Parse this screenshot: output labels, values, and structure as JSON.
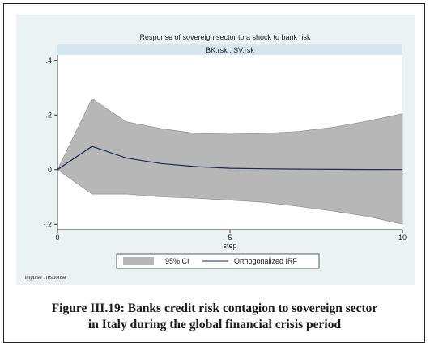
{
  "figure": {
    "caption_line1": "Figure III.19: Banks credit risk contagion to sovereign sector",
    "caption_line2": "in Italy during the global financial crisis period"
  },
  "chart_data": {
    "type": "area",
    "title": "Response of sovereign sector to a shock to bank risk",
    "panel_label": "BK.rsk : SV.rsk",
    "xlabel": "step",
    "ylabel": "",
    "note": "impulse : response",
    "xlim": [
      0,
      10
    ],
    "ylim": [
      -0.22,
      0.42
    ],
    "x_ticks": [
      0,
      5,
      10
    ],
    "y_ticks": [
      -0.2,
      0,
      0.2,
      0.4
    ],
    "y_tick_labels": [
      "-.2",
      "0",
      ".2",
      ".4"
    ],
    "x": [
      0,
      1,
      2,
      3,
      4,
      5,
      6,
      7,
      8,
      9,
      10
    ],
    "series": [
      {
        "name": "95% CI",
        "kind": "band",
        "lower": [
          0,
          -0.09,
          -0.09,
          -0.1,
          -0.105,
          -0.112,
          -0.12,
          -0.135,
          -0.152,
          -0.172,
          -0.2
        ],
        "upper": [
          0,
          0.26,
          0.175,
          0.15,
          0.133,
          0.13,
          0.133,
          0.14,
          0.155,
          0.178,
          0.205
        ],
        "color": "#b7b7b7"
      },
      {
        "name": "Orthogonalized IRF",
        "kind": "line",
        "values": [
          0,
          0.085,
          0.042,
          0.022,
          0.011,
          0.005,
          0.003,
          0.002,
          0.001,
          0.0005,
          0.0002
        ],
        "color": "#1a2a5a"
      }
    ],
    "legend_position": "bottom",
    "background": "#eaf2f3",
    "plot_background": "#ffffff",
    "header_color": "#d5e6ee"
  }
}
